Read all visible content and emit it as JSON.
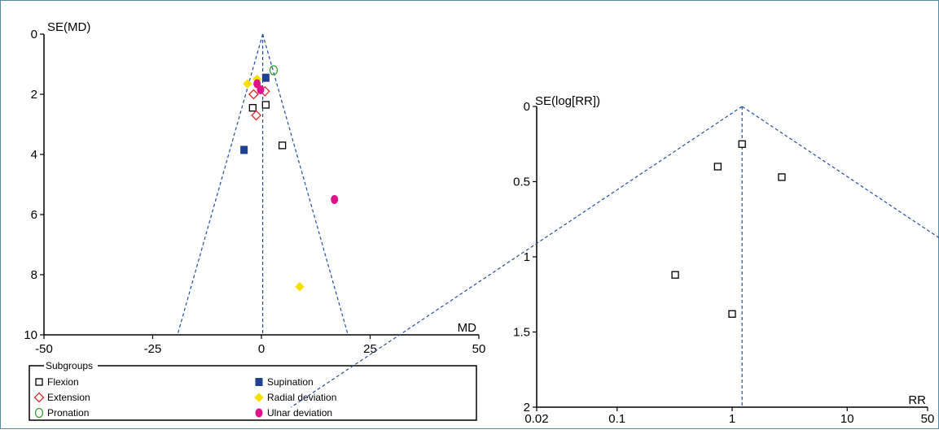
{
  "chart_data": [
    {
      "type": "scatter",
      "subtype": "funnel",
      "xlabel": "MD",
      "ylabel": "SE(MD)",
      "xlim": [
        -50,
        50
      ],
      "ylim": [
        0,
        10
      ],
      "y_inverted": true,
      "x_ticks": [
        "-50",
        "-25",
        "0",
        "25",
        "50"
      ],
      "x_tick_values": [
        -50,
        -25,
        0,
        25,
        50
      ],
      "y_ticks": [
        "0",
        "2",
        "4",
        "6",
        "8",
        "10"
      ],
      "y_tick_values": [
        0,
        2,
        4,
        6,
        8,
        10
      ],
      "summary_effect": 0.3,
      "funnel_apex_se": 0,
      "funnel_base_se": 10,
      "funnel_multiplier": 1.96,
      "grid": false,
      "legend": {
        "title": "Subgroups",
        "position": "bottom",
        "entries": [
          {
            "name": "Flexion",
            "marker": "square-open",
            "color": "#000000"
          },
          {
            "name": "Supination",
            "marker": "square-filled",
            "color": "#1f3f8f"
          },
          {
            "name": "Extension",
            "marker": "diamond-open",
            "color": "#d62728"
          },
          {
            "name": "Radial deviation",
            "marker": "diamond-filled",
            "color": "#f5e000"
          },
          {
            "name": "Pronation",
            "marker": "circle-open",
            "color": "#2ca02c"
          },
          {
            "name": "Ulnar deviation",
            "marker": "circle-filled",
            "color": "#e0128a"
          }
        ]
      },
      "series": [
        {
          "name": "Flexion",
          "points": [
            [
              1.0,
              2.35
            ],
            [
              -2.0,
              2.45
            ],
            [
              4.8,
              3.7
            ]
          ]
        },
        {
          "name": "Supination",
          "points": [
            [
              1.0,
              1.45
            ],
            [
              -4.0,
              3.85
            ]
          ]
        },
        {
          "name": "Extension",
          "points": [
            [
              0.8,
              1.9
            ],
            [
              -1.8,
              2.0
            ],
            [
              -1.2,
              2.7
            ]
          ]
        },
        {
          "name": "Radial deviation",
          "points": [
            [
              -3.2,
              1.65
            ],
            [
              -1.0,
              1.5
            ],
            [
              8.8,
              8.4
            ]
          ]
        },
        {
          "name": "Pronation",
          "points": [
            [
              2.8,
              1.2
            ]
          ]
        },
        {
          "name": "Ulnar deviation",
          "points": [
            [
              -1.0,
              1.65
            ],
            [
              -0.2,
              1.85
            ],
            [
              16.8,
              5.5
            ]
          ]
        }
      ]
    },
    {
      "type": "scatter",
      "subtype": "funnel",
      "xlabel": "RR",
      "ylabel": "SE(log[RR])",
      "x_scale": "log",
      "xlim": [
        0.02,
        50
      ],
      "ylim": [
        0,
        2
      ],
      "y_inverted": true,
      "x_ticks": [
        "0.02",
        "0.1",
        "1",
        "10",
        "50"
      ],
      "x_tick_values": [
        0.02,
        0.1,
        1,
        10,
        50
      ],
      "y_ticks": [
        "0",
        "0.5",
        "1",
        "1.5",
        "2"
      ],
      "y_tick_values": [
        0,
        0.5,
        1,
        1.5,
        2
      ],
      "summary_effect": 1.22,
      "funnel_apex_se": 0,
      "funnel_base_se": 2,
      "funnel_multiplier": 1.96,
      "grid": false,
      "series": [
        {
          "name": "",
          "marker": "square-open",
          "color": "#000000",
          "points": [
            [
              1.22,
              0.25
            ],
            [
              0.75,
              0.4
            ],
            [
              2.7,
              0.47
            ],
            [
              0.32,
              1.12
            ],
            [
              1.0,
              1.38
            ]
          ]
        }
      ]
    }
  ]
}
